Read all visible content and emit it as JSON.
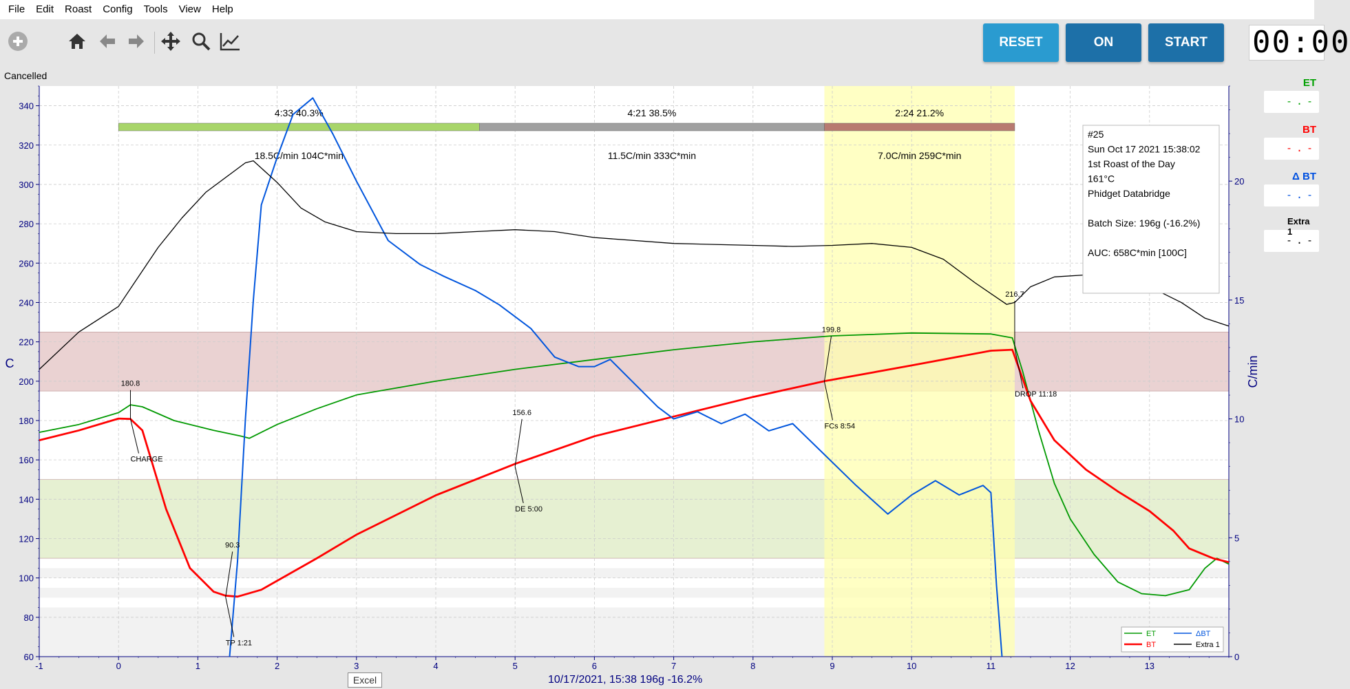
{
  "menu": [
    "File",
    "Edit",
    "Roast",
    "Config",
    "Tools",
    "View",
    "Help"
  ],
  "toolbar": {
    "icons": [
      "add-icon",
      "home-icon",
      "back-icon",
      "forward-icon",
      "pan-icon",
      "zoom-icon",
      "line-chart-icon"
    ],
    "reset_label": "RESET",
    "on_label": "ON",
    "start_label": "START",
    "timer": "00:00",
    "colors": {
      "reset": "#2a9bd0",
      "on": "#1d70a8",
      "start": "#1d70a8"
    }
  },
  "status": "Cancelled",
  "lcds": [
    {
      "label": "ET",
      "value": "-.-",
      "color": "#00a000"
    },
    {
      "label": "BT",
      "value": "-.-",
      "color": "#ff0000"
    },
    {
      "label": "Δ BT",
      "value": "-.-",
      "color": "#0050e0"
    },
    {
      "label": "Extra 1",
      "value": "-.-",
      "color": "#000000"
    }
  ],
  "excel_tooltip": "Excel",
  "footer": "10/17/2021, 15:38   196g  -16.2%",
  "chart_data": {
    "type": "line",
    "ylabel": "C",
    "y2label": "C/min",
    "xlim": [
      -1,
      14
    ],
    "ylim": [
      60,
      350
    ],
    "y2lim": [
      0,
      24
    ],
    "x_ticks": [
      -1,
      0,
      1,
      2,
      3,
      4,
      5,
      6,
      7,
      8,
      9,
      10,
      11,
      12,
      13
    ],
    "y_ticks": [
      60,
      80,
      100,
      120,
      140,
      160,
      180,
      200,
      220,
      240,
      260,
      280,
      300,
      320,
      340
    ],
    "y2_ticks": [
      0,
      5,
      10,
      15,
      20
    ],
    "colors": {
      "ET": "#009900",
      "BT": "#ff0000",
      "dBT": "#0055dd",
      "Extra1": "#000000"
    },
    "series": [
      {
        "name": "ET",
        "color": "#009900",
        "x": [
          -1,
          -0.5,
          0,
          0.15,
          0.3,
          0.7,
          1.2,
          1.55,
          1.65,
          2,
          2.5,
          3,
          4,
          5,
          6,
          7,
          8,
          9,
          10,
          11,
          11.27,
          11.4,
          11.6,
          11.8,
          12,
          12.3,
          12.6,
          12.9,
          13.2,
          13.5,
          13.7,
          13.85,
          14
        ],
        "y": [
          174,
          178,
          184,
          188,
          187,
          180,
          175,
          172,
          171,
          178,
          186,
          193,
          200,
          206,
          211,
          216,
          220,
          223,
          224.5,
          224,
          222,
          205,
          175,
          148,
          130,
          112,
          98,
          92,
          91,
          94,
          105,
          110,
          107
        ]
      },
      {
        "name": "BT",
        "color": "#ff0000",
        "x": [
          -1,
          -0.5,
          0,
          0.15,
          0.3,
          0.6,
          0.9,
          1.2,
          1.35,
          1.5,
          1.8,
          2.5,
          3,
          4,
          5,
          6,
          7,
          8,
          8.9,
          10,
          11,
          11.27,
          11.5,
          11.8,
          12.2,
          12.6,
          13,
          13.3,
          13.5,
          13.8,
          14
        ],
        "y": [
          170,
          175,
          181,
          180.8,
          175,
          135,
          105,
          93,
          91,
          90.5,
          94,
          110,
          122,
          142,
          158,
          172,
          182,
          192,
          200,
          208,
          215.5,
          216,
          190,
          170,
          155,
          144,
          134,
          124,
          115,
          110,
          108
        ]
      },
      {
        "name": "ΔBT",
        "color": "#0055dd",
        "x": [
          1.4,
          1.5,
          1.6,
          1.7,
          1.8,
          2,
          2.2,
          2.45,
          2.7,
          3,
          3.4,
          3.8,
          4.1,
          4.5,
          4.8,
          5.2,
          5.5,
          5.8,
          6,
          6.2,
          6.5,
          6.8,
          7,
          7.3,
          7.6,
          7.9,
          8.2,
          8.5,
          8.9,
          9.3,
          9.7,
          10,
          10.3,
          10.6,
          10.9,
          11,
          11.07,
          11.14
        ],
        "y": [
          0,
          4,
          10,
          15,
          19,
          21,
          22.8,
          23.5,
          22,
          20,
          17.5,
          16.5,
          16,
          15.4,
          14.8,
          13.8,
          12.6,
          12.2,
          12.2,
          12.5,
          11.5,
          10.5,
          10,
          10.3,
          9.8,
          10.2,
          9.5,
          9.8,
          8.5,
          7.2,
          6.0,
          6.8,
          7.4,
          6.8,
          7.2,
          6.9,
          3,
          0
        ]
      },
      {
        "name": "Extra 1",
        "color": "#000000",
        "x": [
          -1,
          -0.5,
          0,
          0.2,
          0.5,
          0.8,
          1.1,
          1.4,
          1.6,
          1.7,
          2,
          2.3,
          2.6,
          3,
          3.5,
          4,
          4.5,
          5,
          5.5,
          6,
          7,
          8,
          8.5,
          9,
          9.5,
          10,
          10.4,
          10.8,
          11.2,
          11.3,
          11.5,
          11.8,
          12.2,
          12.6,
          13,
          13.4,
          13.7,
          14
        ],
        "y": [
          206,
          225,
          238,
          250,
          268,
          283,
          296,
          305,
          311,
          312,
          301,
          288,
          281,
          276,
          275,
          275,
          276,
          277,
          276,
          273,
          270,
          269,
          268.5,
          269,
          270,
          268,
          262,
          250,
          239,
          240,
          248,
          253,
          254,
          253,
          248,
          240,
          232,
          228
        ]
      }
    ],
    "phases": [
      {
        "label": "4:33  40.3%",
        "rate": "18.5C/min  104C*min",
        "color": "#a8d56a",
        "x0": 0,
        "x1": 4.55
      },
      {
        "label": "4:21  38.5%",
        "rate": "11.5C/min  333C*min",
        "color": "#a0a0a0",
        "x0": 4.55,
        "x1": 8.9
      },
      {
        "label": "2:24  21.2%",
        "rate": "7.0C/min  259C*min",
        "color": "#b87a70",
        "x0": 8.9,
        "x1": 11.3
      }
    ],
    "annotations": [
      {
        "value": "180.8",
        "event": "CHARGE",
        "x": 0.15,
        "y": 180.8
      },
      {
        "value": "90.3",
        "event": "TP 1:21",
        "x": 1.35,
        "y": 90.3
      },
      {
        "value": "156.6",
        "event": "DE 5:00",
        "x": 5,
        "y": 156.6
      },
      {
        "value": "199.8",
        "event": "FCs 8:54",
        "x": 8.9,
        "y": 199.8
      },
      {
        "value": "216.7",
        "event": "DROP 11:18",
        "x": 11.3,
        "y": 216.7
      }
    ],
    "info_box": [
      "#25",
      "Sun Oct 17 2021 15:38:02",
      "1st Roast of the Day",
      "161°C",
      "Phidget Databridge",
      "",
      "Batch Size: 196g (-16.2%)",
      "",
      "AUC: 658C*min [100C]"
    ],
    "legend": {
      "entries": [
        "ET",
        "BT",
        "ΔBT",
        "Extra 1"
      ],
      "position": "bottom-right"
    },
    "bands": [
      {
        "y0": 195,
        "y1": 225,
        "color": "#ead2d2"
      },
      {
        "y0": 110,
        "y1": 150,
        "color": "#e6f0d2"
      }
    ],
    "highlight": {
      "x0": 8.9,
      "x1": 11.3,
      "color": "#ffffb0"
    },
    "grid": true
  }
}
